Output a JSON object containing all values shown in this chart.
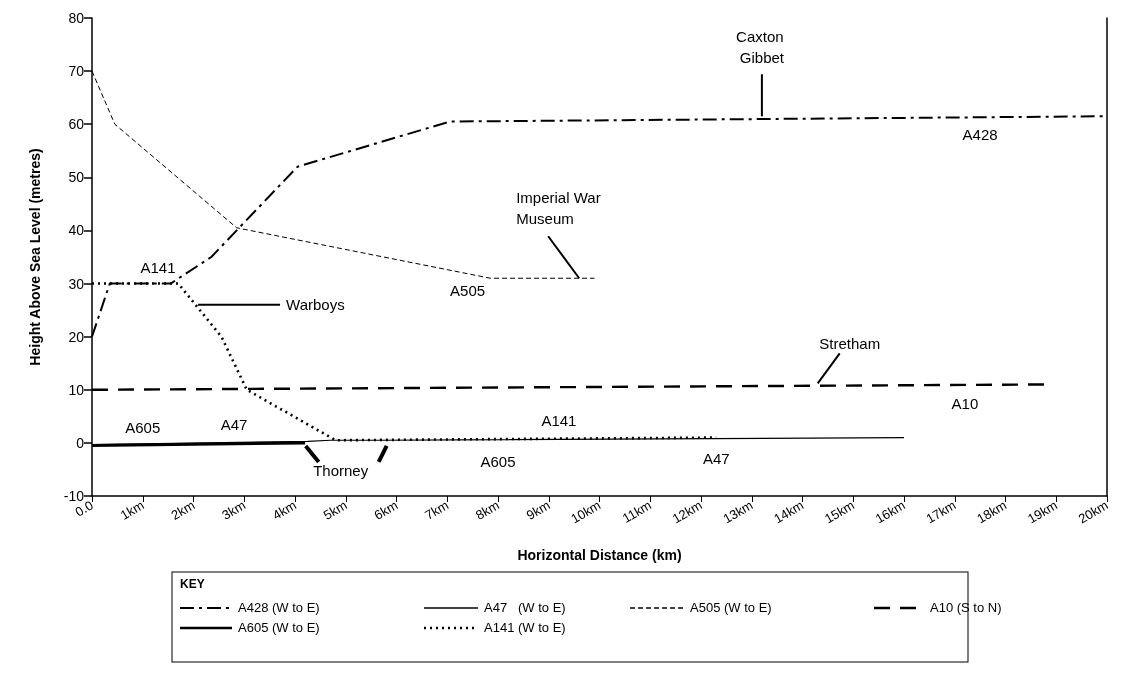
{
  "chart_data": {
    "type": "line",
    "xlabel": "Horizontal Distance (km)",
    "ylabel": "Height Above Sea Level (metres)",
    "legend_title": "KEY",
    "legend": "bottom",
    "grid": false,
    "marker": "none",
    "xlim": [
      0,
      20
    ],
    "xticks": [
      {
        "value": 0,
        "label": "0.0"
      },
      {
        "value": 1,
        "label": "1km"
      },
      {
        "value": 2,
        "label": "2km"
      },
      {
        "value": 3,
        "label": "3km"
      },
      {
        "value": 4,
        "label": "4km"
      },
      {
        "value": 5,
        "label": "5km"
      },
      {
        "value": 6,
        "label": "6km"
      },
      {
        "value": 7,
        "label": "7km"
      },
      {
        "value": 8,
        "label": "8km"
      },
      {
        "value": 9,
        "label": "9km"
      },
      {
        "value": 10,
        "label": "10km"
      },
      {
        "value": 11,
        "label": "11km"
      },
      {
        "value": 12,
        "label": "12km"
      },
      {
        "value": 13,
        "label": "13km"
      },
      {
        "value": 14,
        "label": "14km"
      },
      {
        "value": 15,
        "label": "15km"
      },
      {
        "value": 16,
        "label": "16km"
      },
      {
        "value": 17,
        "label": "17km"
      },
      {
        "value": 18,
        "label": "18km"
      },
      {
        "value": 19,
        "label": "19km"
      },
      {
        "value": 20,
        "label": "20km"
      }
    ],
    "ylim": [
      -10,
      80
    ],
    "yticks": [
      -10,
      0,
      10,
      20,
      30,
      40,
      50,
      60,
      70,
      80
    ],
    "series": [
      {
        "name": "A428 (W to E)",
        "color": "#000000",
        "line_style": "dashdot",
        "x": [
          0,
          0.35,
          1.55,
          2.35,
          4.05,
          7.05,
          20
        ],
        "values": [
          20,
          30,
          30,
          35,
          52,
          60.5,
          61.5
        ]
      },
      {
        "name": "A47   (W to E)",
        "color": "#000000",
        "line_style": "solid",
        "x": [
          0,
          4.25,
          4.7,
          5.7,
          16
        ],
        "values": [
          -0.3,
          0.3,
          0.5,
          0.5,
          1
        ]
      },
      {
        "name": "A505 (W to E)",
        "color": "#000000",
        "line_style": "dashed",
        "x": [
          0,
          0.45,
          2.85,
          7.85,
          9.9
        ],
        "values": [
          70,
          60,
          40.5,
          31,
          31
        ]
      },
      {
        "name": "A10 (S to N)",
        "color": "#000000",
        "line_style": "dashed",
        "x": [
          0,
          18.8
        ],
        "values": [
          10,
          11
        ]
      },
      {
        "name": "A605 (W to E)",
        "color": "#000000",
        "line_style": "solid",
        "x": [
          0,
          4.2
        ],
        "values": [
          -0.5,
          0
        ]
      },
      {
        "name": "A141 (W to E)",
        "color": "#000000",
        "line_style": "dotted",
        "x": [
          0,
          1.7,
          2.55,
          3.05,
          4.8,
          12.3
        ],
        "values": [
          30,
          30,
          20,
          10,
          0.5,
          1
        ]
      }
    ],
    "annotations": [
      {
        "text": "Caxton Gibbet",
        "x": 13.2,
        "y": 61.5
      },
      {
        "text": "Imperial War Museum",
        "x": 9.6,
        "y": 31
      },
      {
        "text": "Warboys",
        "x": 2.05,
        "y": 26
      },
      {
        "text": "Stretham",
        "x": 14.3,
        "y": 11.2
      },
      {
        "text": "Thorney",
        "x": 4.9,
        "y": 0
      },
      {
        "text": "A141",
        "x": 1.3,
        "y": 30
      },
      {
        "text": "A505",
        "x": 7.4,
        "y": 32
      },
      {
        "text": "A428",
        "x": 17.5,
        "y": 61
      },
      {
        "text": "A10",
        "x": 17.2,
        "y": 11
      },
      {
        "text": "A605",
        "x": 1,
        "y": -0.4
      },
      {
        "text": "A47",
        "x": 2.8,
        "y": 0
      },
      {
        "text": "A141",
        "x": 9.2,
        "y": 0.8
      },
      {
        "text": "A605",
        "x": 8,
        "y": 0.6
      },
      {
        "text": "A47",
        "x": 12.3,
        "y": 0.8
      }
    ]
  }
}
